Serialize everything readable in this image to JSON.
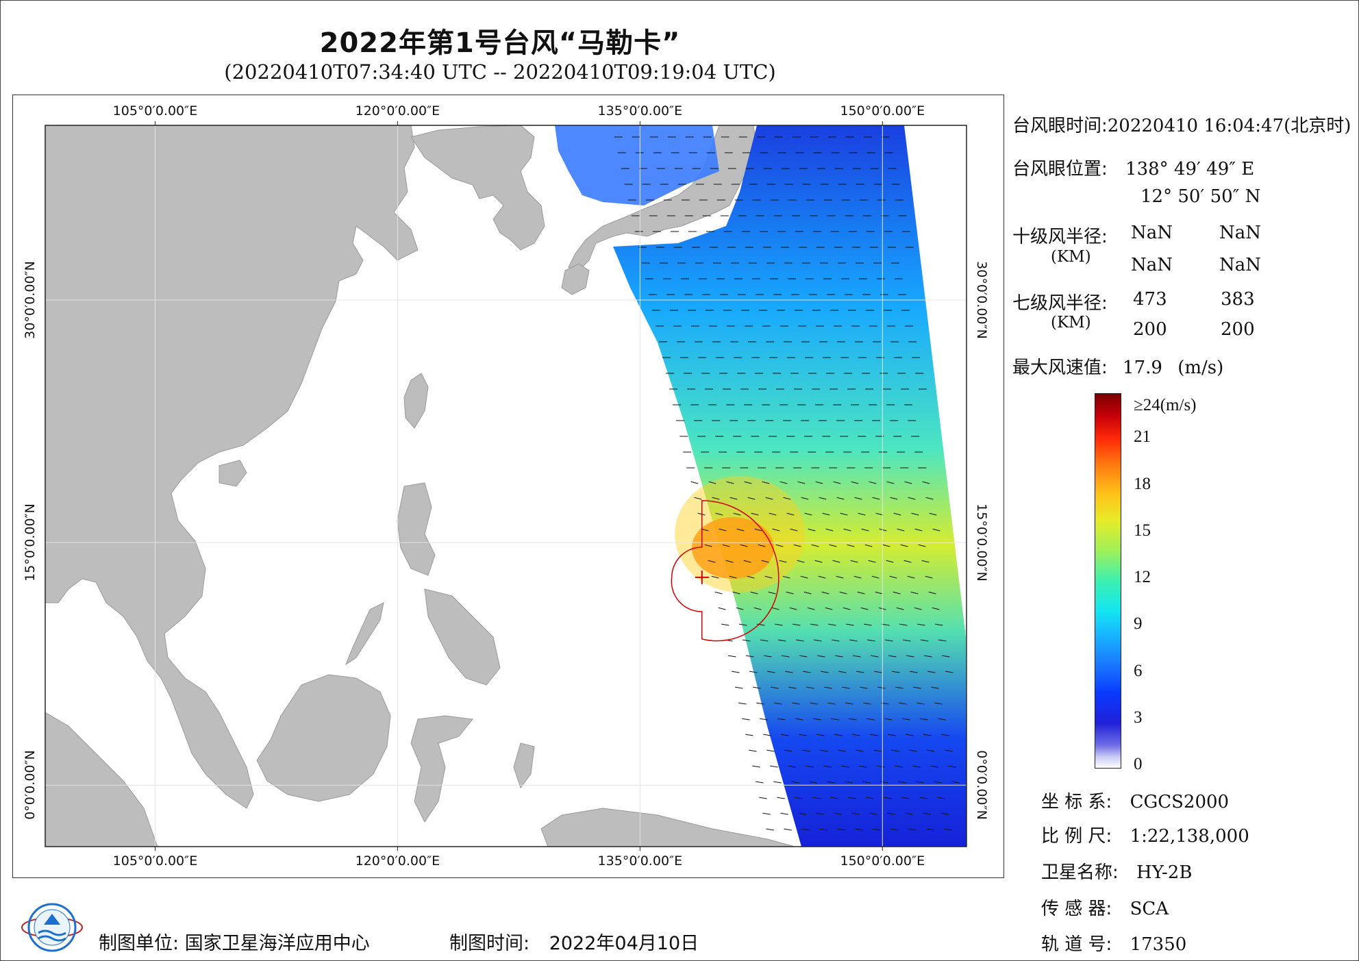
{
  "title": "2022年第1号台风“马勒卡”",
  "subtitle": "(20220410T07:34:40 UTC -- 20220410T09:19:04 UTC)",
  "map": {
    "lon_ticks": [
      "105°0′0.00″E",
      "120°0′0.00″E",
      "135°0′0.00″E",
      "150°0′0.00″E"
    ],
    "lat_ticks": [
      "30°0′0.00″N",
      "15°0′0.00″N",
      "0°0′0.00″N"
    ],
    "lon_values": [
      105,
      120,
      135,
      150
    ],
    "lat_values": [
      30,
      15,
      0
    ],
    "extent": {
      "lon_min": 98.2,
      "lon_max": 155.2,
      "lat_min": -3.8,
      "lat_max": 40.8
    },
    "land_color": "#bdbdbd",
    "sea_color": "#ffffff",
    "typhoon_eye": {
      "lon": 138.83,
      "lat": 12.85
    },
    "radius_color": "#d40000"
  },
  "info": {
    "eye_time_label": "台风眼时间:",
    "eye_time_value": "20220410 16:04:47(北京时)",
    "eye_pos_label": "台风眼位置:",
    "eye_lon": "138° 49′ 49″ E",
    "eye_lat": "12° 50′ 50″ N",
    "r10_label": "十级风半径:",
    "r10_unit": "(KM)",
    "r10_values": [
      "NaN",
      "NaN",
      "NaN",
      "NaN"
    ],
    "r7_label": "七级风半径:",
    "r7_unit": "(KM)",
    "r7_values": [
      "473",
      "383",
      "200",
      "200"
    ],
    "max_wind_label": "最大风速值:",
    "max_wind_value": "17.9",
    "max_wind_unit": "(m/s)"
  },
  "colorbar": {
    "top_label": "≥24(m/s)",
    "ticks": [
      "21",
      "18",
      "15",
      "12",
      "9",
      "6",
      "3",
      "0"
    ],
    "tick_values": [
      21,
      18,
      15,
      12,
      9,
      6,
      3,
      0
    ],
    "max_value": 24
  },
  "meta": {
    "crs_label": "坐 标 系:",
    "crs_value": "CGCS2000",
    "scale_label": "比 例 尺:",
    "scale_value": "1:22,138,000",
    "satellite_label": "卫星名称:",
    "satellite_value": "HY-2B",
    "sensor_label": "传 感 器:",
    "sensor_value": "SCA",
    "orbit_label": "轨 道 号:",
    "orbit_value": "17350"
  },
  "footer": {
    "org_label": "制图单位:",
    "org_value": "国家卫星海洋应用中心",
    "date_label": "制图时间:",
    "date_value": "2022年04月10日"
  }
}
